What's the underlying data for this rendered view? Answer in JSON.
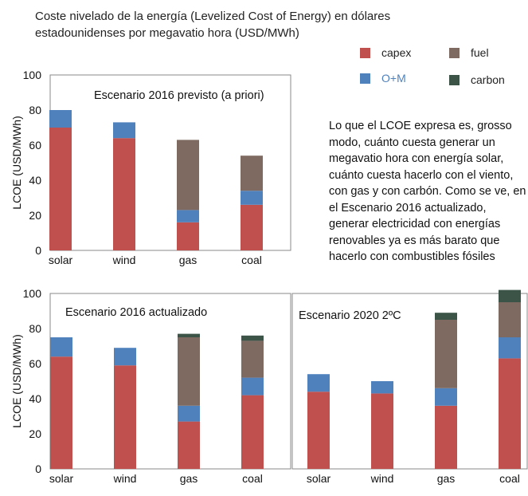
{
  "title": "Coste nivelado de la energía (Levelized Cost of Energy) en dólares estadounidenses por megavatio hora (USD/MWh)",
  "legend": [
    {
      "name": "capex",
      "color": "#c0504d"
    },
    {
      "name": "O+M",
      "color": "#4f81bd"
    },
    {
      "name": "fuel",
      "color": "#7f6a62"
    },
    {
      "name": "carbon",
      "color": "#3c5447"
    }
  ],
  "note": "Lo que el LCOE expresa es, grosso modo, cuánto cuesta generar un megavatio hora con energía solar, cuánto cuesta hacerlo con el viento, con gas y con carbón. Como se ve, en el Escenario 2016 actualizado, generar electricidad con energías renovables ya es más barato que hacerlo con combustibles fósiles",
  "chart_data": [
    {
      "type": "bar",
      "stacked": true,
      "title": "Escenario 2016 previsto (a priori)",
      "ylabel": "LCOE (USD/MWh)",
      "categories": [
        "solar",
        "wind",
        "gas",
        "coal"
      ],
      "ylim": [
        0,
        100
      ],
      "yticks": [
        0,
        20,
        40,
        60,
        80,
        100
      ],
      "series": [
        {
          "name": "capex",
          "values": [
            70,
            64,
            16,
            26
          ]
        },
        {
          "name": "O+M",
          "values": [
            10,
            9,
            7,
            8
          ]
        },
        {
          "name": "fuel",
          "values": [
            0,
            0,
            40,
            20
          ]
        },
        {
          "name": "carbon",
          "values": [
            0,
            0,
            0,
            0
          ]
        }
      ]
    },
    {
      "type": "bar",
      "stacked": true,
      "title": "Escenario 2016 actualizado",
      "ylabel": "LCOE (USD/MWh)",
      "categories": [
        "solar",
        "wind",
        "gas",
        "coal"
      ],
      "ylim": [
        0,
        100
      ],
      "yticks": [
        0,
        20,
        40,
        60,
        80,
        100
      ],
      "series": [
        {
          "name": "capex",
          "values": [
            64,
            59,
            27,
            42
          ]
        },
        {
          "name": "O+M",
          "values": [
            11,
            10,
            9,
            10
          ]
        },
        {
          "name": "fuel",
          "values": [
            0,
            0,
            39,
            21
          ]
        },
        {
          "name": "carbon",
          "values": [
            0,
            0,
            2,
            3
          ]
        }
      ]
    },
    {
      "type": "bar",
      "stacked": true,
      "title": "Escenario 2020 2ºC",
      "categories": [
        "solar",
        "wind",
        "gas",
        "coal"
      ],
      "ylim": [
        0,
        100
      ],
      "series": [
        {
          "name": "capex",
          "values": [
            44,
            43,
            36,
            63
          ]
        },
        {
          "name": "O+M",
          "values": [
            10,
            7,
            10,
            12
          ]
        },
        {
          "name": "fuel",
          "values": [
            0,
            0,
            39,
            20
          ]
        },
        {
          "name": "carbon",
          "values": [
            0,
            0,
            4,
            7
          ]
        }
      ]
    }
  ]
}
